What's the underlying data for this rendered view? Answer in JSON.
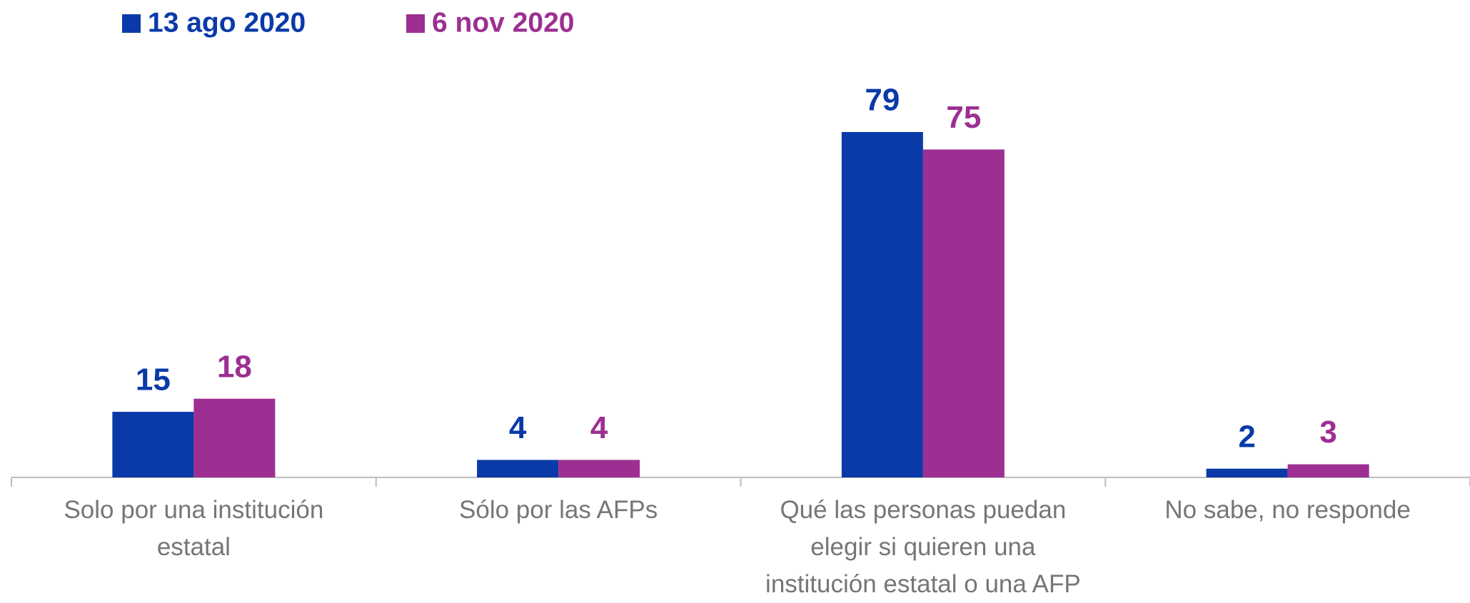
{
  "chart_data": {
    "type": "bar",
    "categories": [
      "Solo por una institución estatal",
      "Sólo por las AFPs",
      "Qué las personas puedan elegir si quieren una institución estatal o una AFP",
      "No sabe, no responde"
    ],
    "series": [
      {
        "name": "13 ago 2020",
        "color": "#0a3aa8",
        "values": [
          15,
          4,
          79,
          2
        ]
      },
      {
        "name": "6 nov 2020",
        "color": "#9c2f91",
        "values": [
          18,
          4,
          75,
          3
        ]
      }
    ],
    "legend": "top-left"
  }
}
